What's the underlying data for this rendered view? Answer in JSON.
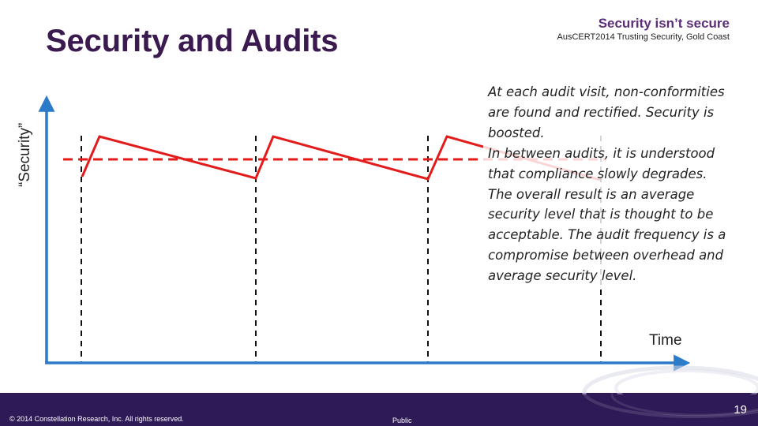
{
  "slide": {
    "title": "Security and Audits",
    "deck_title": "Security isn’t secure",
    "event_line": "AusCERT2014 Trusting Security, Gold Coast"
  },
  "diagram": {
    "y_axis_label": "“Security”",
    "x_axis_label": "Time",
    "audit_count": 4,
    "series": [
      {
        "role": "security-level",
        "style": "solid",
        "color": "#e31b1b"
      },
      {
        "role": "average-security-level",
        "style": "dashed",
        "color": "#e31b1b"
      }
    ],
    "audit_marker_style": "dashed-vertical",
    "axis_color": "#2b7bc9"
  },
  "explanation": {
    "paragraphs": [
      "At each audit visit, non-conformities are found and rectified.  Security is boosted.",
      "In between audits, it is understood that compliance slowly degrades.",
      "The overall result is an average security level that is thought to be acceptable.  The audit frequency  is a compromise between overhead and average security level."
    ]
  },
  "footer": {
    "copyright": "© 2014 Constellation Research, Inc.   All rights reserved.",
    "classification": "Public",
    "page_number": "19",
    "bar_color": "#2e1a57"
  }
}
